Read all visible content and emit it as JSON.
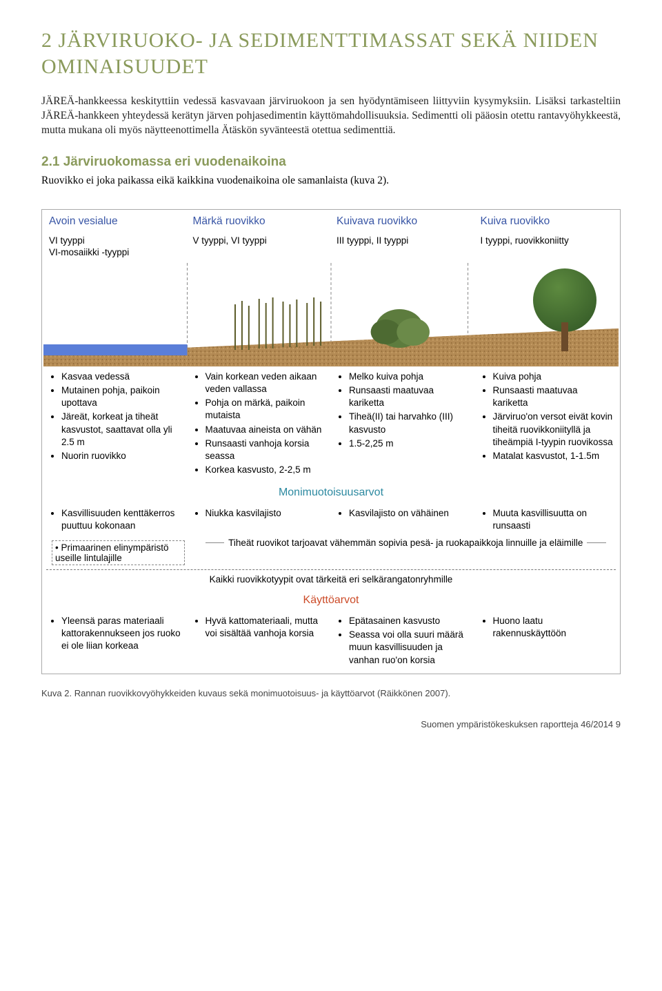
{
  "chapter_title": "2 JÄRVIRUOKO- JA SEDIMENTTIMASSAT SEKÄ NIIDEN OMINAISUUDET",
  "intro": "JÄREÄ-hankkeessa keskityttiin vedessä kasvavaan järviruokoon ja sen hyödyntämiseen liittyviin kysymyksiin. Lisäksi tarkasteltiin JÄREÄ-hankkeen yhteydessä kerätyn järven pohjasedimentin käyttömahdollisuuksia. Sedimentti oli pääosin otettu rantavyöhykkeestä, mutta mukana oli myös näytteenottimella Ätäskön syvänteestä otettua sedimenttiä.",
  "section_head": "2.1 Järviruokomassa eri vuodenaikoina",
  "section_text": "Ruovikko ei joka paikassa eikä kaikkina vuodenaikoina ole samanlaista (kuva 2).",
  "caption": "Kuva 2. Rannan ruovikkovyöhykkeiden kuvaus sekä monimuotoisuus- ja käyttöarvot (Räikkönen 2007).",
  "footer": "Suomen ympäristökeskuksen raportteja 46/2014  9",
  "colors": {
    "heading_green": "#8a9a5b",
    "zone_title_blue": "#3855a5",
    "monimuo_blue": "#2c89a0",
    "kaytto_red": "#cc4b28",
    "water_blue": "#5a7ed8",
    "sediment": "#b38a54",
    "foliage_green": "#3d6b2f",
    "bush_green": "#5d7c3e"
  },
  "zones": [
    {
      "title": "Avoin vesialue",
      "types": "VI tyyppi\nVI-mosaiikki -tyyppi"
    },
    {
      "title": "Märkä ruovikko",
      "types": "V tyyppi, VI tyyppi"
    },
    {
      "title": "Kuivava ruovikko",
      "types": "III tyyppi, II tyyppi"
    },
    {
      "title": "Kuiva ruovikko",
      "types": "I tyyppi, ruovikkoniitty"
    }
  ],
  "main_bullets": [
    [
      "Kasvaa vedessä",
      "Mutainen pohja, paikoin upottava",
      "Järeät, korkeat ja tiheät kasvustot, saattavat olla yli 2.5 m",
      "Nuorin ruovikko"
    ],
    [
      "Vain korkean veden aikaan veden vallassa",
      "Pohja on märkä, paikoin mutaista",
      "Maatuvaa aineista on vähän",
      "Runsaasti vanhoja korsia seassa",
      "Korkea kasvusto, 2-2,5 m"
    ],
    [
      "Melko kuiva pohja",
      "Runsaasti maatuvaa kariketta",
      "Tiheä(II) tai harvahko (III) kasvusto",
      "1.5-2,25 m"
    ],
    [
      "Kuiva pohja",
      "Runsaasti maatuvaa kariketta",
      "Järviruo'on versot eivät kovin tiheitä ruovikkoniityllä ja tiheämpiä I-tyypin ruovikossa",
      "Matalat kasvustot, 1-1.5m"
    ]
  ],
  "monimuo_label": "Monimuotoisuusarvot",
  "monimuo_bullets": [
    [
      "Kasvillisuuden kenttäkerros puuttuu kokonaan"
    ],
    [
      "Niukka kasvilajisto"
    ],
    [
      "Kasvilajisto on vähäinen"
    ],
    [
      "Muuta kasvillisuutta on runsaasti"
    ]
  ],
  "primary_note": "Primaarinen elinympäristö useille lintulajille",
  "span_tiheat": "Tiheät ruovikot tarjoavat vähemmän sopivia pesä- ja ruokapaikkoja linnuille ja eläimille",
  "span_all": "Kaikki ruovikkotyypit ovat tärkeitä eri selkärangatonryhmille",
  "kaytto_label": "Käyttöarvot",
  "kaytto_bullets": [
    [
      "Yleensä paras materiaali kattorakennukseen jos ruoko ei ole liian korkeaa"
    ],
    [
      "Hyvä kattomateriaali, mutta voi sisältää vanhoja korsia"
    ],
    [
      "Epätasainen kasvusto",
      "Seassa voi olla suuri määrä muun kasvillisuuden ja vanhan ruo'on korsia"
    ],
    [
      "Huono laatu rakennuskäyttöön"
    ]
  ]
}
